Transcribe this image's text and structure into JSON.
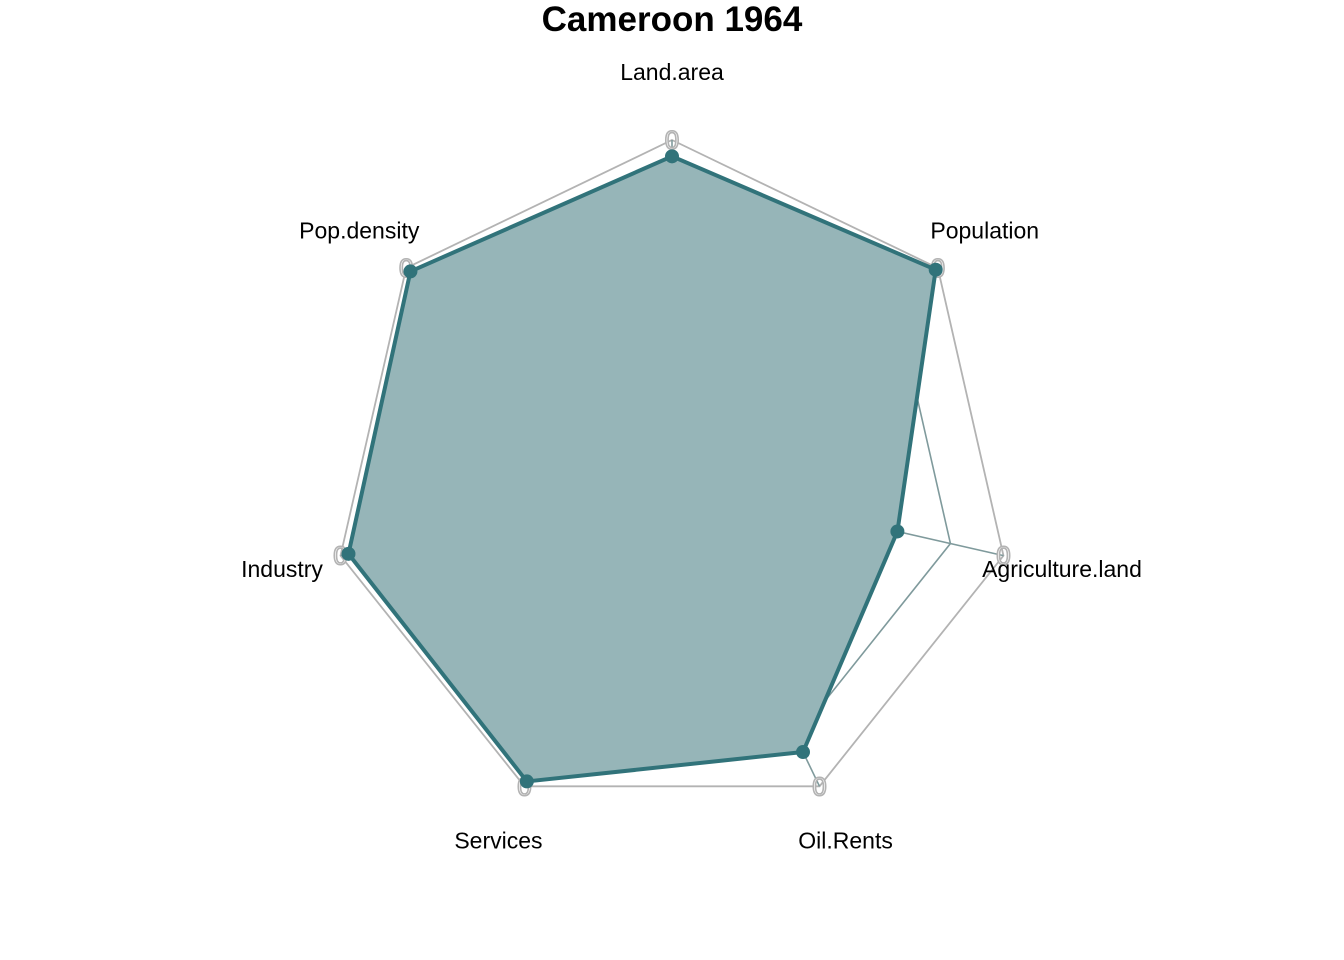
{
  "colors": {
    "series": "#31737a",
    "fill": "#96b5b8",
    "grid": "#7f9a9c",
    "frame": "#b3b3b3"
  },
  "chart_data": {
    "type": "radar",
    "title": "Cameroon 1964",
    "axes": [
      "Land.area",
      "Population",
      "Agriculture.land",
      "Oil.Rents",
      "Services",
      "Industry",
      "Pop.density"
    ],
    "axis_max_label": "0",
    "rlim": [
      0,
      1
    ],
    "grid_levels": [
      0.2,
      0.4,
      0.6,
      0.8,
      1.0
    ],
    "series": [
      {
        "values": [
          0.94,
          0.99,
          0.6,
          0.86,
          0.98,
          0.97,
          0.98
        ]
      }
    ]
  }
}
